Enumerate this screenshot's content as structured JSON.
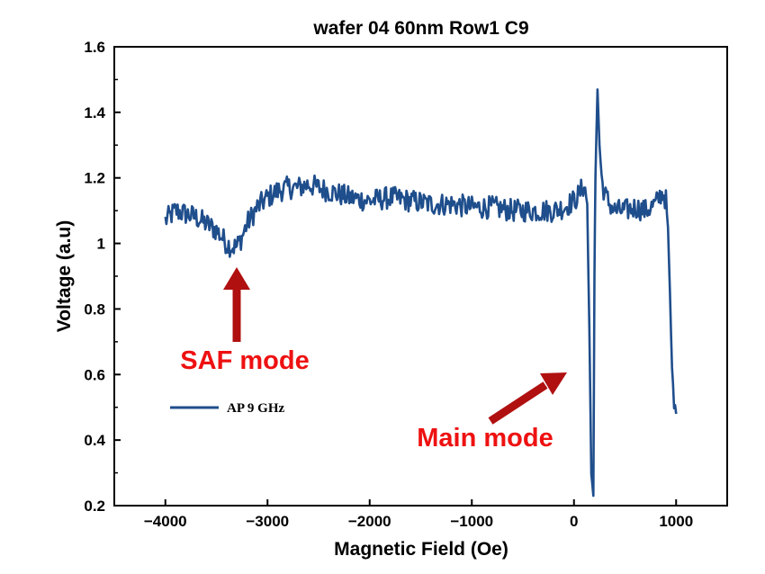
{
  "chart_data": {
    "type": "line",
    "title": "wafer 04 60nm Row1 C9",
    "xlabel": "Magnetic Field (Oe)",
    "ylabel": "Voltage (a.u)",
    "xlim": [
      -4500,
      1500
    ],
    "ylim": [
      0.2,
      1.6
    ],
    "xticks": [
      -4000,
      -3000,
      -2000,
      -1000,
      0,
      1000
    ],
    "xtick_labels": [
      "−4000",
      "−3000",
      "−2000",
      "−1000",
      "0",
      "1000"
    ],
    "yticks": [
      0.2,
      0.4,
      0.6,
      0.8,
      1.0,
      1.2,
      1.4,
      1.6
    ],
    "ytick_labels": [
      "0.2",
      "0.4",
      "0.6",
      "0.8",
      "1",
      "1.2",
      "1.4",
      "1.6"
    ],
    "legend_position": "middle-left",
    "series": [
      {
        "name": "AP 9 GHz",
        "color": "#1f4e8c",
        "x": [
          -4000,
          -3900,
          -3800,
          -3700,
          -3600,
          -3500,
          -3450,
          -3400,
          -3350,
          -3300,
          -3250,
          -3200,
          -3100,
          -3000,
          -2900,
          -2800,
          -2700,
          -2600,
          -2500,
          -2400,
          -2300,
          -2200,
          -2000,
          -1800,
          -1600,
          -1400,
          -1200,
          -1000,
          -800,
          -600,
          -400,
          -200,
          -100,
          0,
          50,
          100,
          130,
          150,
          170,
          190,
          200,
          210,
          230,
          250,
          270,
          300,
          350,
          400,
          500,
          600,
          700,
          800,
          850,
          880,
          900,
          920,
          940,
          960,
          980,
          1000
        ],
        "values": [
          1.07,
          1.1,
          1.09,
          1.08,
          1.06,
          1.04,
          1.02,
          1.0,
          0.99,
          0.99,
          1.02,
          1.06,
          1.11,
          1.14,
          1.16,
          1.17,
          1.17,
          1.18,
          1.17,
          1.16,
          1.15,
          1.14,
          1.13,
          1.14,
          1.13,
          1.12,
          1.12,
          1.11,
          1.11,
          1.1,
          1.1,
          1.1,
          1.11,
          1.13,
          1.15,
          1.18,
          1.12,
          0.75,
          0.3,
          0.23,
          0.9,
          1.2,
          1.47,
          1.3,
          1.2,
          1.15,
          1.12,
          1.1,
          1.1,
          1.11,
          1.1,
          1.12,
          1.15,
          1.15,
          1.13,
          1.05,
          0.85,
          0.6,
          0.5,
          0.48
        ]
      }
    ],
    "annotations": [
      {
        "text": "SAF mode",
        "color": "#ee1111",
        "points_to": {
          "x": -3300,
          "y": 0.93
        }
      },
      {
        "text": "Main mode",
        "color": "#ee1111",
        "points_to": {
          "x": -50,
          "y": 0.62
        }
      }
    ],
    "arrow_color": "#b01010"
  }
}
